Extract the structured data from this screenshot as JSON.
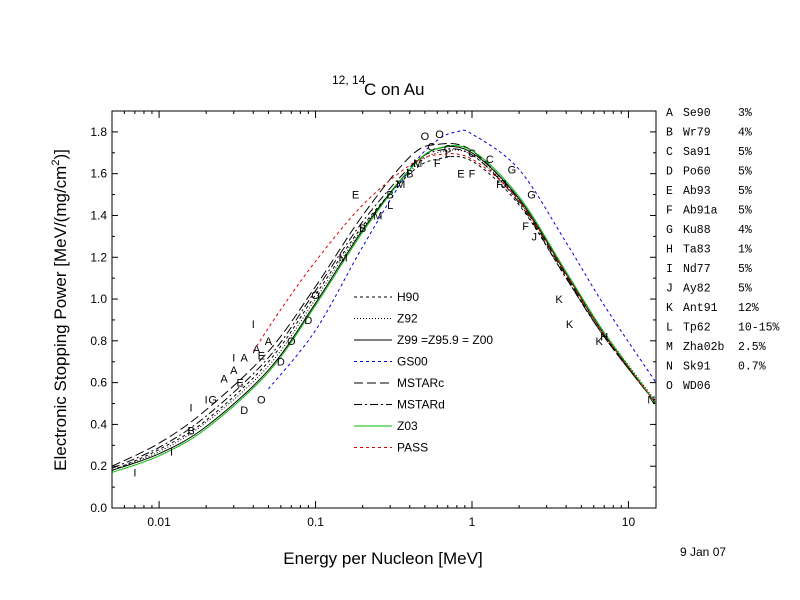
{
  "chart_data": {
    "type": "line",
    "title_sup": "12, 14",
    "title_main": "C on Au",
    "xlabel": "Energy per Nucleon [MeV]",
    "ylabel_pre": "Electronic Stopping Power [MeV/(mg/cm",
    "ylabel_sup": "2",
    "ylabel_post": ")]",
    "date": "9 Jan 07",
    "x_scale": "log",
    "xlim": [
      0.005,
      15
    ],
    "ylim": [
      0.0,
      1.9
    ],
    "x_ticks": [
      {
        "value": 0.01,
        "label": "0.01"
      },
      {
        "value": 0.1,
        "label": "0.1"
      },
      {
        "value": 1,
        "label": "1"
      },
      {
        "value": 10,
        "label": "10"
      }
    ],
    "y_ticks": [
      {
        "value": 0.0,
        "label": "0.0"
      },
      {
        "value": 0.2,
        "label": "0.2"
      },
      {
        "value": 0.4,
        "label": "0.4"
      },
      {
        "value": 0.6,
        "label": "0.6"
      },
      {
        "value": 0.8,
        "label": "0.8"
      },
      {
        "value": 1.0,
        "label": "1.0"
      },
      {
        "value": 1.2,
        "label": "1.2"
      },
      {
        "value": 1.4,
        "label": "1.4"
      },
      {
        "value": 1.6,
        "label": "1.6"
      },
      {
        "value": 1.8,
        "label": "1.8"
      }
    ],
    "series": [
      {
        "name": "H90",
        "color": "#000000",
        "dash": "3,3",
        "x": [
          0.005,
          0.01,
          0.02,
          0.05,
          0.1,
          0.2,
          0.4,
          0.6,
          1,
          2,
          4,
          7,
          15
        ],
        "y": [
          0.18,
          0.28,
          0.42,
          0.7,
          1.02,
          1.35,
          1.6,
          1.67,
          1.66,
          1.45,
          1.1,
          0.82,
          0.5
        ]
      },
      {
        "name": "Z92",
        "color": "#000000",
        "dash": "1,2",
        "x": [
          0.005,
          0.01,
          0.02,
          0.05,
          0.1,
          0.2,
          0.4,
          0.6,
          1,
          2,
          4,
          7,
          15
        ],
        "y": [
          0.18,
          0.27,
          0.41,
          0.68,
          1.0,
          1.34,
          1.61,
          1.7,
          1.69,
          1.47,
          1.12,
          0.84,
          0.51
        ]
      },
      {
        "name": "Z99 =Z95.9 = Z00",
        "color": "#000000",
        "dash": "",
        "x": [
          0.005,
          0.01,
          0.02,
          0.05,
          0.1,
          0.2,
          0.4,
          0.6,
          1,
          2,
          4,
          7,
          15
        ],
        "y": [
          0.18,
          0.26,
          0.39,
          0.66,
          0.98,
          1.33,
          1.62,
          1.72,
          1.7,
          1.48,
          1.12,
          0.83,
          0.5
        ]
      },
      {
        "name": "GS00",
        "color": "#0000dd",
        "dash": "3,3",
        "x": [
          0.05,
          0.1,
          0.2,
          0.4,
          0.6,
          0.8,
          1,
          2,
          4,
          7,
          15
        ],
        "y": [
          0.57,
          0.85,
          1.25,
          1.62,
          1.76,
          1.8,
          1.79,
          1.62,
          1.27,
          0.97,
          0.6
        ]
      },
      {
        "name": "MSTARc",
        "color": "#000000",
        "dash": "9,4",
        "x": [
          0.005,
          0.01,
          0.02,
          0.05,
          0.1,
          0.2,
          0.4,
          0.6,
          1,
          2,
          4,
          7,
          15
        ],
        "y": [
          0.2,
          0.31,
          0.47,
          0.75,
          1.06,
          1.4,
          1.68,
          1.74,
          1.71,
          1.47,
          1.11,
          0.82,
          0.5
        ]
      },
      {
        "name": "MSTARd",
        "color": "#000000",
        "dash": "8,3,2,3",
        "x": [
          0.005,
          0.01,
          0.02,
          0.05,
          0.1,
          0.2,
          0.4,
          0.6,
          1,
          2,
          4,
          7,
          15
        ],
        "y": [
          0.19,
          0.29,
          0.44,
          0.72,
          1.04,
          1.37,
          1.63,
          1.71,
          1.69,
          1.46,
          1.1,
          0.82,
          0.5
        ]
      },
      {
        "name": "Z03",
        "color": "#00bb00",
        "dash": "",
        "x": [
          0.005,
          0.01,
          0.02,
          0.05,
          0.1,
          0.2,
          0.4,
          0.6,
          1,
          2,
          4,
          7,
          15
        ],
        "y": [
          0.17,
          0.25,
          0.38,
          0.65,
          0.97,
          1.32,
          1.62,
          1.72,
          1.71,
          1.49,
          1.13,
          0.84,
          0.5
        ]
      },
      {
        "name": "PASS",
        "color": "#dd0000",
        "dash": "3,3",
        "x": [
          0.04,
          0.06,
          0.1,
          0.2,
          0.4,
          0.6,
          1,
          2,
          4,
          7,
          15
        ],
        "y": [
          0.75,
          0.95,
          1.18,
          1.45,
          1.64,
          1.69,
          1.67,
          1.47,
          1.12,
          0.83,
          0.5
        ]
      }
    ],
    "points": [
      {
        "m": "A",
        "x": 0.026,
        "y": 0.62
      },
      {
        "m": "A",
        "x": 0.03,
        "y": 0.66
      },
      {
        "m": "A",
        "x": 0.035,
        "y": 0.72
      },
      {
        "m": "A",
        "x": 0.042,
        "y": 0.76
      },
      {
        "m": "A",
        "x": 0.05,
        "y": 0.8
      },
      {
        "m": "B",
        "x": 0.016,
        "y": 0.37
      },
      {
        "m": "B",
        "x": 0.2,
        "y": 1.34
      },
      {
        "m": "B",
        "x": 0.3,
        "y": 1.5
      },
      {
        "m": "B",
        "x": 0.4,
        "y": 1.6
      },
      {
        "m": "C",
        "x": 0.55,
        "y": 1.73
      },
      {
        "m": "C",
        "x": 0.7,
        "y": 1.72
      },
      {
        "m": "C",
        "x": 1.0,
        "y": 1.7
      },
      {
        "m": "C",
        "x": 1.3,
        "y": 1.67
      },
      {
        "m": "D",
        "x": 0.035,
        "y": 0.47
      },
      {
        "m": "D",
        "x": 0.06,
        "y": 0.7
      },
      {
        "m": "D",
        "x": 0.09,
        "y": 0.9
      },
      {
        "m": "E",
        "x": 0.033,
        "y": 0.6
      },
      {
        "m": "E",
        "x": 0.045,
        "y": 0.73
      },
      {
        "m": "E",
        "x": 0.18,
        "y": 1.5
      },
      {
        "m": "E",
        "x": 0.85,
        "y": 1.6
      },
      {
        "m": "F",
        "x": 0.6,
        "y": 1.65
      },
      {
        "m": "F",
        "x": 1.0,
        "y": 1.6
      },
      {
        "m": "F",
        "x": 1.5,
        "y": 1.55
      },
      {
        "m": "F",
        "x": 2.2,
        "y": 1.35
      },
      {
        "m": "G",
        "x": 0.022,
        "y": 0.52
      },
      {
        "m": "G",
        "x": 1.8,
        "y": 1.62
      },
      {
        "m": "G",
        "x": 2.4,
        "y": 1.5
      },
      {
        "m": "H",
        "x": 7.0,
        "y": 0.82
      },
      {
        "m": "I",
        "x": 0.007,
        "y": 0.17
      },
      {
        "m": "I",
        "x": 0.012,
        "y": 0.27
      },
      {
        "m": "I",
        "x": 0.016,
        "y": 0.48
      },
      {
        "m": "I",
        "x": 0.02,
        "y": 0.52
      },
      {
        "m": "I",
        "x": 0.03,
        "y": 0.72
      },
      {
        "m": "I",
        "x": 0.04,
        "y": 0.88
      },
      {
        "m": "J",
        "x": 1.6,
        "y": 1.55
      },
      {
        "m": "J",
        "x": 2.5,
        "y": 1.3
      },
      {
        "m": "K",
        "x": 3.6,
        "y": 1.0
      },
      {
        "m": "K",
        "x": 4.2,
        "y": 0.88
      },
      {
        "m": "K",
        "x": 6.5,
        "y": 0.8
      },
      {
        "m": "L",
        "x": 0.3,
        "y": 1.45
      },
      {
        "m": "L",
        "x": 0.7,
        "y": 1.7
      },
      {
        "m": "M",
        "x": 0.15,
        "y": 1.2
      },
      {
        "m": "M",
        "x": 0.25,
        "y": 1.4
      },
      {
        "m": "M",
        "x": 0.35,
        "y": 1.55
      },
      {
        "m": "M",
        "x": 0.45,
        "y": 1.65
      },
      {
        "m": "N",
        "x": 14.0,
        "y": 0.52
      },
      {
        "m": "O",
        "x": 0.045,
        "y": 0.52
      },
      {
        "m": "O",
        "x": 0.07,
        "y": 0.8
      },
      {
        "m": "O",
        "x": 0.1,
        "y": 1.02
      },
      {
        "m": "O",
        "x": 0.5,
        "y": 1.78
      },
      {
        "m": "O",
        "x": 0.62,
        "y": 1.79
      }
    ],
    "refs": [
      {
        "letter": "A",
        "name": "Se90",
        "err": "3%"
      },
      {
        "letter": "B",
        "name": "Wr79",
        "err": "4%"
      },
      {
        "letter": "C",
        "name": "Sa91",
        "err": "5%"
      },
      {
        "letter": "D",
        "name": "Po60",
        "err": "5%"
      },
      {
        "letter": "E",
        "name": "Ab93",
        "err": "5%"
      },
      {
        "letter": "F",
        "name": "Ab91a",
        "err": "5%"
      },
      {
        "letter": "G",
        "name": "Ku88",
        "err": "4%"
      },
      {
        "letter": "H",
        "name": "Ta83",
        "err": "1%"
      },
      {
        "letter": "I",
        "name": "Nd77",
        "err": "5%"
      },
      {
        "letter": "J",
        "name": "Ay82",
        "err": "5%"
      },
      {
        "letter": "K",
        "name": "Ant91",
        "err": "12%"
      },
      {
        "letter": "L",
        "name": "Tp62",
        "err": "10-15%"
      },
      {
        "letter": "M",
        "name": "Zha02b",
        "err": "2.5%"
      },
      {
        "letter": "N",
        "name": "Sk91",
        "err": "0.7%"
      },
      {
        "letter": "O",
        "name": "WD06",
        "err": ""
      }
    ]
  }
}
